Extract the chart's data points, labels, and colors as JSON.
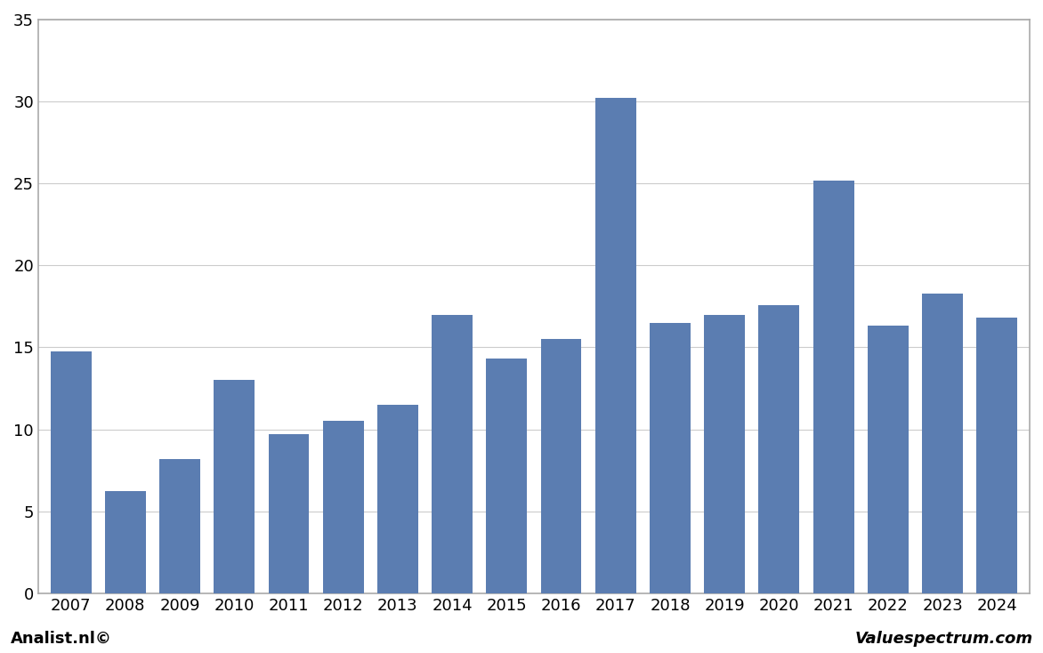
{
  "categories": [
    2007,
    2008,
    2009,
    2010,
    2011,
    2012,
    2013,
    2014,
    2015,
    2016,
    2017,
    2018,
    2019,
    2020,
    2021,
    2022,
    2023,
    2024
  ],
  "values": [
    14.75,
    6.25,
    8.2,
    13.0,
    9.7,
    10.5,
    11.5,
    17.0,
    14.3,
    15.5,
    30.2,
    16.5,
    17.0,
    17.6,
    25.2,
    16.3,
    18.3,
    16.8
  ],
  "bar_color": "#5B7DB1",
  "background_color": "#ffffff",
  "plot_bg_color": "#ffffff",
  "ylim": [
    0,
    35
  ],
  "yticks": [
    0,
    5,
    10,
    15,
    20,
    25,
    30,
    35
  ],
  "grid_color": "#cccccc",
  "footer_left": "Analist.nl©",
  "footer_right": "Valuespectrum.com",
  "border_color": "#aaaaaa"
}
